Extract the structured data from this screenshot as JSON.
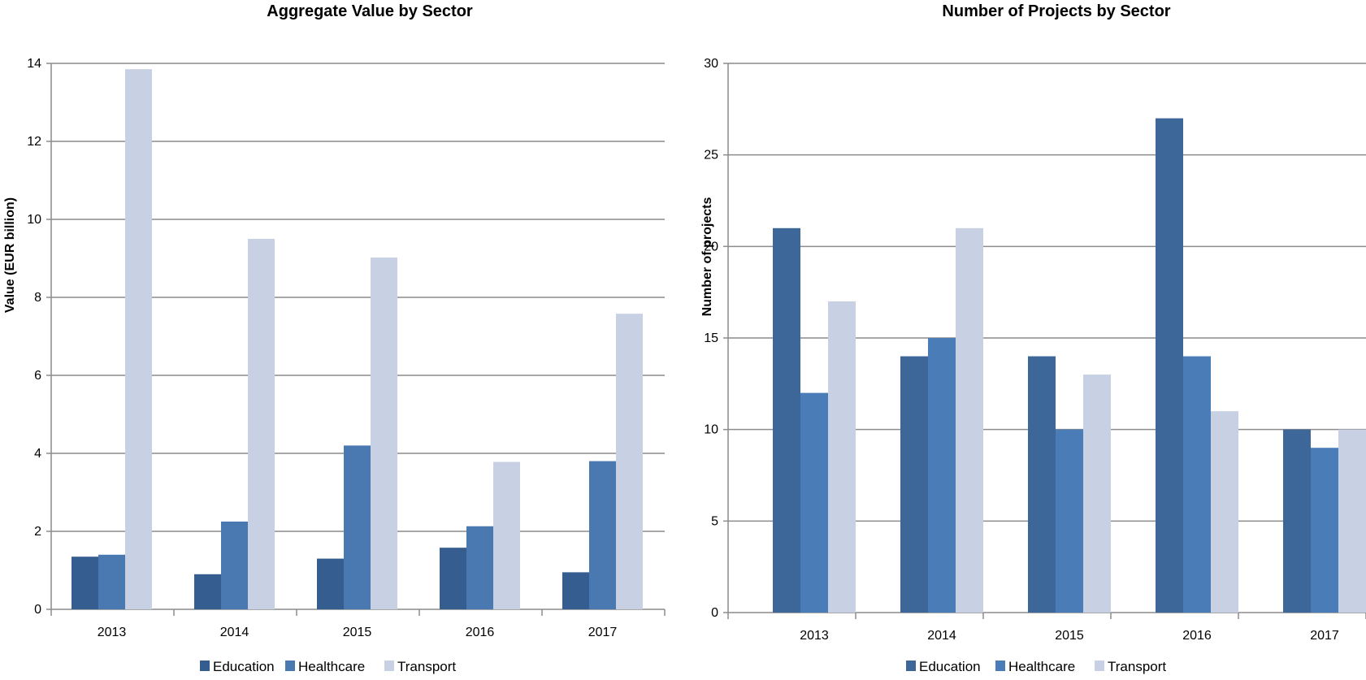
{
  "chart_data": [
    {
      "type": "bar",
      "title": "Aggregate Value by Sector",
      "xlabel": "",
      "ylabel": "Value (EUR billion)",
      "ylim": [
        0,
        14
      ],
      "yticks": [
        0,
        2,
        4,
        6,
        8,
        10,
        12,
        14
      ],
      "categories": [
        "2013",
        "2014",
        "2015",
        "2016",
        "2017"
      ],
      "grid": true,
      "legend_position": "bottom",
      "series": [
        {
          "name": "Education",
          "color": "#365d8f",
          "values": [
            1.35,
            0.9,
            1.3,
            1.58,
            0.95
          ]
        },
        {
          "name": "Healthcare",
          "color": "#4a78b0",
          "values": [
            1.4,
            2.25,
            4.2,
            2.13,
            3.8
          ]
        },
        {
          "name": "Transport",
          "color": "#c7d1e3",
          "values": [
            13.85,
            9.5,
            9.02,
            3.78,
            7.58
          ]
        }
      ]
    },
    {
      "type": "bar",
      "title": "Number of Projects by Sector",
      "xlabel": "",
      "ylabel": "Number of projects",
      "ylim": [
        0,
        30
      ],
      "yticks": [
        0,
        5,
        10,
        15,
        20,
        25,
        30
      ],
      "categories": [
        "2013",
        "2014",
        "2015",
        "2016",
        "2017"
      ],
      "grid": true,
      "legend_position": "bottom",
      "series": [
        {
          "name": "Education",
          "color": "#3d6699",
          "values": [
            21,
            14,
            14,
            27,
            10
          ]
        },
        {
          "name": "Healthcare",
          "color": "#4a7cb8",
          "values": [
            12,
            15,
            10,
            14,
            9
          ]
        },
        {
          "name": "Transport",
          "color": "#c7d1e3",
          "values": [
            17,
            21,
            13,
            11,
            10
          ]
        }
      ]
    }
  ]
}
